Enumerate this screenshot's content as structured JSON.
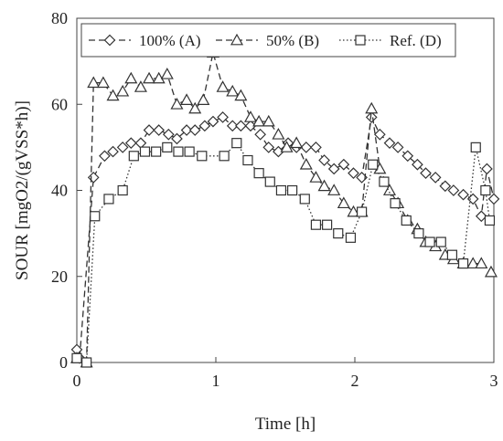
{
  "chart_data": {
    "type": "line",
    "xlabel": "Time [h]",
    "ylabel": "SOUR [mgO2/(gVSS*h)]",
    "xlim": [
      0,
      3
    ],
    "ylim": [
      0,
      80
    ],
    "xticks": [
      0,
      1,
      2,
      3
    ],
    "yticks": [
      0,
      20,
      40,
      60,
      80
    ],
    "x_tick_labels": [
      "0",
      "1",
      "2",
      "3"
    ],
    "y_tick_labels": [
      "0",
      "20",
      "40",
      "60",
      "80"
    ],
    "grid": false,
    "legend_position": "top",
    "series": [
      {
        "name": "100% (A)",
        "marker": "diamond",
        "line": "dashed",
        "color": "#333333",
        "points": [
          [
            0.0,
            3
          ],
          [
            0.02,
            1
          ],
          [
            0.12,
            43
          ],
          [
            0.2,
            48
          ],
          [
            0.26,
            49
          ],
          [
            0.33,
            50
          ],
          [
            0.39,
            51
          ],
          [
            0.46,
            51
          ],
          [
            0.52,
            54
          ],
          [
            0.59,
            54
          ],
          [
            0.66,
            53
          ],
          [
            0.72,
            52
          ],
          [
            0.79,
            54
          ],
          [
            0.85,
            54
          ],
          [
            0.92,
            55
          ],
          [
            0.98,
            56
          ],
          [
            1.05,
            57
          ],
          [
            1.12,
            55
          ],
          [
            1.18,
            55
          ],
          [
            1.25,
            55
          ],
          [
            1.32,
            53
          ],
          [
            1.38,
            50
          ],
          [
            1.45,
            49
          ],
          [
            1.52,
            51
          ],
          [
            1.58,
            50
          ],
          [
            1.65,
            50
          ],
          [
            1.72,
            50
          ],
          [
            1.78,
            47
          ],
          [
            1.85,
            45
          ],
          [
            1.92,
            46
          ],
          [
            1.99,
            44
          ],
          [
            2.05,
            43
          ],
          [
            2.12,
            57
          ],
          [
            2.18,
            53
          ],
          [
            2.25,
            51
          ],
          [
            2.31,
            50
          ],
          [
            2.38,
            48
          ],
          [
            2.45,
            46
          ],
          [
            2.51,
            44
          ],
          [
            2.58,
            43
          ],
          [
            2.65,
            41
          ],
          [
            2.71,
            40
          ],
          [
            2.78,
            39
          ],
          [
            2.85,
            38
          ],
          [
            2.91,
            34
          ],
          [
            2.95,
            45
          ],
          [
            3.0,
            38
          ]
        ]
      },
      {
        "name": "50% (B)",
        "marker": "triangle",
        "line": "dashed",
        "color": "#333333",
        "points": [
          [
            0.0,
            1
          ],
          [
            0.07,
            0
          ],
          [
            0.12,
            65
          ],
          [
            0.19,
            65
          ],
          [
            0.26,
            62
          ],
          [
            0.33,
            63
          ],
          [
            0.39,
            66
          ],
          [
            0.46,
            64
          ],
          [
            0.52,
            66
          ],
          [
            0.59,
            66
          ],
          [
            0.65,
            67
          ],
          [
            0.72,
            60
          ],
          [
            0.79,
            61
          ],
          [
            0.85,
            59
          ],
          [
            0.91,
            61
          ],
          [
            0.98,
            72
          ],
          [
            1.05,
            64
          ],
          [
            1.12,
            63
          ],
          [
            1.18,
            62
          ],
          [
            1.25,
            57
          ],
          [
            1.31,
            56
          ],
          [
            1.38,
            56
          ],
          [
            1.45,
            53
          ],
          [
            1.51,
            50
          ],
          [
            1.58,
            51
          ],
          [
            1.65,
            46
          ],
          [
            1.72,
            43
          ],
          [
            1.78,
            41
          ],
          [
            1.85,
            40
          ],
          [
            1.92,
            37
          ],
          [
            1.99,
            35
          ],
          [
            2.05,
            35
          ],
          [
            2.12,
            59
          ],
          [
            2.18,
            45
          ],
          [
            2.25,
            40
          ],
          [
            2.31,
            37
          ],
          [
            2.38,
            33
          ],
          [
            2.45,
            31
          ],
          [
            2.51,
            28
          ],
          [
            2.58,
            27
          ],
          [
            2.65,
            25
          ],
          [
            2.71,
            24
          ],
          [
            2.78,
            23
          ],
          [
            2.85,
            23
          ],
          [
            2.91,
            23
          ],
          [
            2.98,
            21
          ]
        ]
      },
      {
        "name": "Ref. (D)",
        "marker": "square",
        "line": "dotted",
        "color": "#333333",
        "points": [
          [
            0.0,
            1
          ],
          [
            0.07,
            0
          ],
          [
            0.13,
            34
          ],
          [
            0.23,
            38
          ],
          [
            0.33,
            40
          ],
          [
            0.41,
            48
          ],
          [
            0.49,
            49
          ],
          [
            0.57,
            49
          ],
          [
            0.65,
            50
          ],
          [
            0.73,
            49
          ],
          [
            0.81,
            49
          ],
          [
            0.9,
            48
          ],
          [
            1.06,
            48
          ],
          [
            1.15,
            51
          ],
          [
            1.23,
            47
          ],
          [
            1.31,
            44
          ],
          [
            1.39,
            42
          ],
          [
            1.47,
            40
          ],
          [
            1.55,
            40
          ],
          [
            1.64,
            38
          ],
          [
            1.72,
            32
          ],
          [
            1.8,
            32
          ],
          [
            1.88,
            30
          ],
          [
            1.97,
            29
          ],
          [
            2.05,
            35
          ],
          [
            2.13,
            46
          ],
          [
            2.21,
            42
          ],
          [
            2.29,
            37
          ],
          [
            2.37,
            33
          ],
          [
            2.46,
            30
          ],
          [
            2.54,
            28
          ],
          [
            2.62,
            28
          ],
          [
            2.7,
            25
          ],
          [
            2.78,
            23
          ],
          [
            2.87,
            50
          ],
          [
            2.94,
            40
          ],
          [
            2.97,
            33
          ]
        ]
      }
    ]
  }
}
